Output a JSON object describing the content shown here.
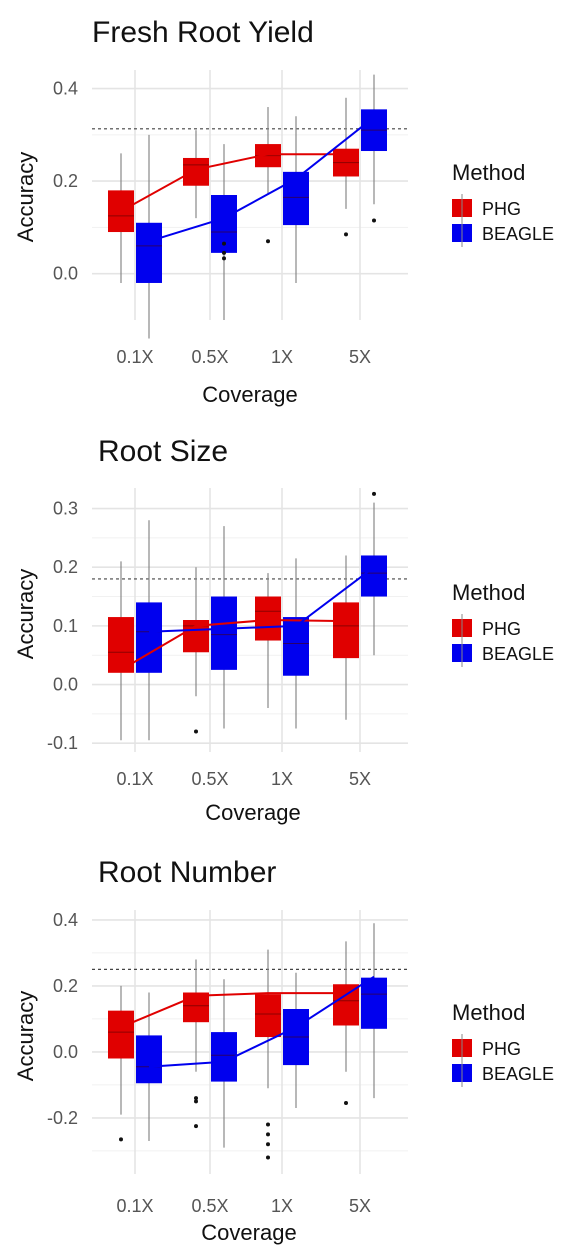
{
  "chart_data": [
    {
      "type": "box",
      "title": "Fresh Root Yield",
      "xlabel": "Coverage",
      "ylabel": "Accuracy",
      "categories": [
        "0.1X",
        "0.5X",
        "1X",
        "5X"
      ],
      "ylim": [
        -0.1,
        0.44
      ],
      "yticks": [
        0.0,
        0.2,
        0.4
      ],
      "ytick_labels": [
        "0.0",
        "0.2",
        "0.4"
      ],
      "reference_line": 0.313,
      "grid": true,
      "legend": {
        "title": "Method",
        "position": "right",
        "entries": [
          "PHG",
          "BEAGLE"
        ]
      },
      "series": [
        {
          "name": "PHG",
          "color": "#e00000",
          "boxes": [
            {
              "min": -0.02,
              "q1": 0.09,
              "median": 0.125,
              "q3": 0.18,
              "max": 0.26,
              "outliers": []
            },
            {
              "min": 0.12,
              "q1": 0.19,
              "median": 0.235,
              "q3": 0.25,
              "max": 0.31,
              "outliers": []
            },
            {
              "min": 0.17,
              "q1": 0.23,
              "median": 0.255,
              "q3": 0.28,
              "max": 0.36,
              "outliers": [
                0.07
              ]
            },
            {
              "min": 0.14,
              "q1": 0.21,
              "median": 0.24,
              "q3": 0.27,
              "max": 0.38,
              "outliers": [
                0.085
              ]
            }
          ],
          "trend": [
            0.135,
            0.225,
            0.258,
            0.258
          ]
        },
        {
          "name": "BEAGLE",
          "color": "#0000ee",
          "boxes": [
            {
              "min": -0.14,
              "q1": -0.02,
              "median": 0.06,
              "q3": 0.11,
              "max": 0.3,
              "outliers": []
            },
            {
              "min": -0.1,
              "q1": 0.045,
              "median": 0.09,
              "q3": 0.17,
              "max": 0.28,
              "outliers": [
                0.033,
                0.045,
                0.065
              ]
            },
            {
              "min": -0.02,
              "q1": 0.105,
              "median": 0.165,
              "q3": 0.22,
              "max": 0.34,
              "outliers": []
            },
            {
              "min": 0.15,
              "q1": 0.265,
              "median": 0.31,
              "q3": 0.355,
              "max": 0.43,
              "outliers": [
                0.115
              ]
            }
          ],
          "trend": [
            0.07,
            0.12,
            0.205,
            0.338
          ]
        }
      ]
    },
    {
      "type": "box",
      "title": "Root Size",
      "xlabel": "Coverage",
      "ylabel": "Accuracy",
      "categories": [
        "0.1X",
        "0.5X",
        "1X",
        "5X"
      ],
      "ylim": [
        -0.115,
        0.335
      ],
      "yticks": [
        -0.1,
        0.0,
        0.1,
        0.2,
        0.3
      ],
      "ytick_labels": [
        "-0.1",
        "0.0",
        "0.1",
        "0.2",
        "0.3"
      ],
      "reference_line": 0.18,
      "grid": true,
      "legend": {
        "title": "Method",
        "position": "right",
        "entries": [
          "PHG",
          "BEAGLE"
        ]
      },
      "series": [
        {
          "name": "PHG",
          "color": "#e00000",
          "boxes": [
            {
              "min": -0.095,
              "q1": 0.02,
              "median": 0.055,
              "q3": 0.115,
              "max": 0.21,
              "outliers": []
            },
            {
              "min": -0.02,
              "q1": 0.055,
              "median": 0.1,
              "q3": 0.11,
              "max": 0.2,
              "outliers": [
                -0.08
              ]
            },
            {
              "min": -0.04,
              "q1": 0.075,
              "median": 0.125,
              "q3": 0.15,
              "max": 0.19,
              "outliers": []
            },
            {
              "min": -0.06,
              "q1": 0.045,
              "median": 0.1,
              "q3": 0.14,
              "max": 0.22,
              "outliers": []
            }
          ],
          "trend": [
            0.025,
            0.1,
            0.11,
            0.108
          ]
        },
        {
          "name": "BEAGLE",
          "color": "#0000ee",
          "boxes": [
            {
              "min": -0.095,
              "q1": 0.02,
              "median": 0.09,
              "q3": 0.14,
              "max": 0.28,
              "outliers": []
            },
            {
              "min": -0.075,
              "q1": 0.025,
              "median": 0.085,
              "q3": 0.15,
              "max": 0.27,
              "outliers": []
            },
            {
              "min": -0.075,
              "q1": 0.015,
              "median": 0.07,
              "q3": 0.115,
              "max": 0.215,
              "outliers": []
            },
            {
              "min": 0.05,
              "q1": 0.15,
              "median": 0.19,
              "q3": 0.22,
              "max": 0.31,
              "outliers": [
                0.325
              ]
            }
          ],
          "trend": [
            0.09,
            0.095,
            0.1,
            0.2
          ]
        }
      ]
    },
    {
      "type": "box",
      "title": "Root Number",
      "xlabel": "Coverage",
      "ylabel": "Accuracy",
      "categories": [
        "0.1X",
        "0.5X",
        "1X",
        "5X"
      ],
      "ylim": [
        -0.37,
        0.43
      ],
      "yticks": [
        -0.2,
        0.0,
        0.2,
        0.4
      ],
      "ytick_labels": [
        "-0.2",
        "0.0",
        "0.2",
        "0.4"
      ],
      "reference_line": 0.25,
      "grid": true,
      "legend": {
        "title": "Method",
        "position": "right",
        "entries": [
          "PHG",
          "BEAGLE"
        ]
      },
      "series": [
        {
          "name": "PHG",
          "color": "#e00000",
          "boxes": [
            {
              "min": -0.19,
              "q1": -0.02,
              "median": 0.06,
              "q3": 0.125,
              "max": 0.2,
              "outliers": [
                -0.265
              ]
            },
            {
              "min": -0.06,
              "q1": 0.09,
              "median": 0.14,
              "q3": 0.18,
              "max": 0.28,
              "outliers": [
                -0.14,
                -0.15,
                -0.225
              ]
            },
            {
              "min": -0.11,
              "q1": 0.045,
              "median": 0.115,
              "q3": 0.175,
              "max": 0.31,
              "outliers": [
                -0.22,
                -0.25,
                -0.28,
                -0.32
              ]
            },
            {
              "min": -0.06,
              "q1": 0.08,
              "median": 0.155,
              "q3": 0.205,
              "max": 0.335,
              "outliers": [
                -0.155
              ]
            }
          ],
          "trend": [
            0.075,
            0.17,
            0.178,
            0.178
          ]
        },
        {
          "name": "BEAGLE",
          "color": "#0000ee",
          "boxes": [
            {
              "min": -0.27,
              "q1": -0.095,
              "median": -0.045,
              "q3": 0.05,
              "max": 0.18,
              "outliers": []
            },
            {
              "min": -0.29,
              "q1": -0.09,
              "median": -0.01,
              "q3": 0.06,
              "max": 0.22,
              "outliers": []
            },
            {
              "min": -0.17,
              "q1": -0.04,
              "median": 0.045,
              "q3": 0.13,
              "max": 0.24,
              "outliers": []
            },
            {
              "min": -0.14,
              "q1": 0.07,
              "median": 0.175,
              "q3": 0.225,
              "max": 0.39,
              "outliers": []
            }
          ],
          "trend": [
            -0.045,
            -0.03,
            0.075,
            0.228
          ]
        }
      ]
    }
  ]
}
